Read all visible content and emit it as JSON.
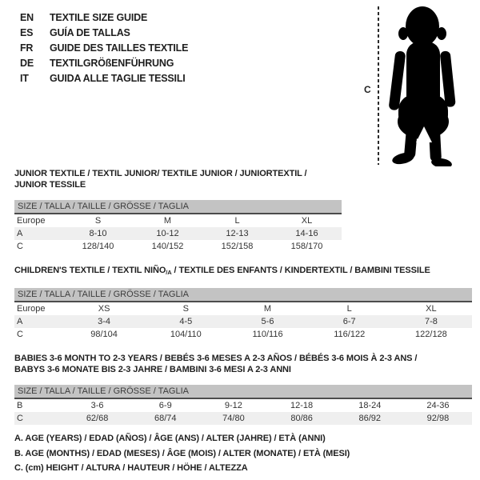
{
  "colors": {
    "header_bar": "#c3c3c3",
    "alt_row": "#efefef",
    "text": "#333333",
    "border_dark": "#4c4c4c",
    "silhouette": "#000000"
  },
  "header": {
    "languages": [
      {
        "code": "EN",
        "label": "TEXTILE SIZE GUIDE"
      },
      {
        "code": "ES",
        "label": "GUÍA DE TALLAS"
      },
      {
        "code": "FR",
        "label": "GUIDE DES TAILLES TEXTILE"
      },
      {
        "code": "DE",
        "label": "TEXTILGRÖßENFÜHRUNG"
      },
      {
        "code": "IT",
        "label": "GUIDA ALLE TAGLIE TESSILI"
      }
    ],
    "figure": {
      "label": "C"
    }
  },
  "tables": [
    {
      "title_segments": [
        {
          "t": "JUNIOR TEXTILE / TEXTIL JUNIOR/ TEXTILE JUNIOR / JUNIORTEXTIL / JUNIOR TESSILE"
        }
      ],
      "size_header": "SIZE / TALLA / TAILLE / GRÖSSE / TAGLIA",
      "rows": [
        {
          "label": "Europe",
          "values": [
            "S",
            "M",
            "L",
            "XL"
          ]
        },
        {
          "label": "A",
          "values": [
            "8-10",
            "10-12",
            "12-13",
            "14-16"
          ]
        },
        {
          "label": "C",
          "values": [
            "128/140",
            "140/152",
            "152/158",
            "158/170"
          ]
        }
      ]
    },
    {
      "title_segments": [
        {
          "t": "CHILDREN'S TEXTILE / TEXTIL NIÑO"
        },
        {
          "t": "/A",
          "sub": true
        },
        {
          "t": " / TEXTILE DES ENFANTS / KINDERTEXTIL / BAMBINI TESSILE"
        }
      ],
      "size_header": "SIZE / TALLA / TAILLE / GRÖSSE / TAGLIA",
      "rows": [
        {
          "label": "Europe",
          "values": [
            "XS",
            "S",
            "M",
            "L",
            "XL"
          ]
        },
        {
          "label": "A",
          "values": [
            "3-4",
            "4-5",
            "5-6",
            "6-7",
            "7-8"
          ]
        },
        {
          "label": "C",
          "values": [
            "98/104",
            "104/110",
            "110/116",
            "116/122",
            "122/128"
          ]
        }
      ]
    },
    {
      "title_segments": [
        {
          "t": "BABIES 3-6 MONTH TO 2-3 YEARS / BEBÉS 3-6 MESES A 2-3 AÑOS / BÉBÉS 3-6 MOIS À 2-3 ANS /"
        },
        {
          "t": "BABYS 3-6 MONATE BIS 2-3 JAHRE / BAMBINI 3-6 MESI A 2-3 ANNI",
          "br": true
        }
      ],
      "size_header": "SIZE / TALLA / TAILLE / GRÖSSE / TAGLIA",
      "rows": [
        {
          "label": "B",
          "values": [
            "3-6",
            "6-9",
            "9-12",
            "12-18",
            "18-24",
            "24-36"
          ]
        },
        {
          "label": "C",
          "values": [
            "62/68",
            "68/74",
            "74/80",
            "80/86",
            "86/92",
            "92/98"
          ]
        }
      ]
    }
  ],
  "notes": [
    "A. AGE (YEARS) / EDAD (AÑOS) / ÂGE (ANS) / ALTER (JAHRE) / ETÀ (ANNI)",
    "B. AGE (MONTHS) / EDAD (MESES) / ÂGE (MOIS) / ALTER (MONATE) / ETÀ (MESI)",
    "C. (cm) HEIGHT / ALTURA / HAUTEUR / HÖHE / ALTEZZA"
  ]
}
